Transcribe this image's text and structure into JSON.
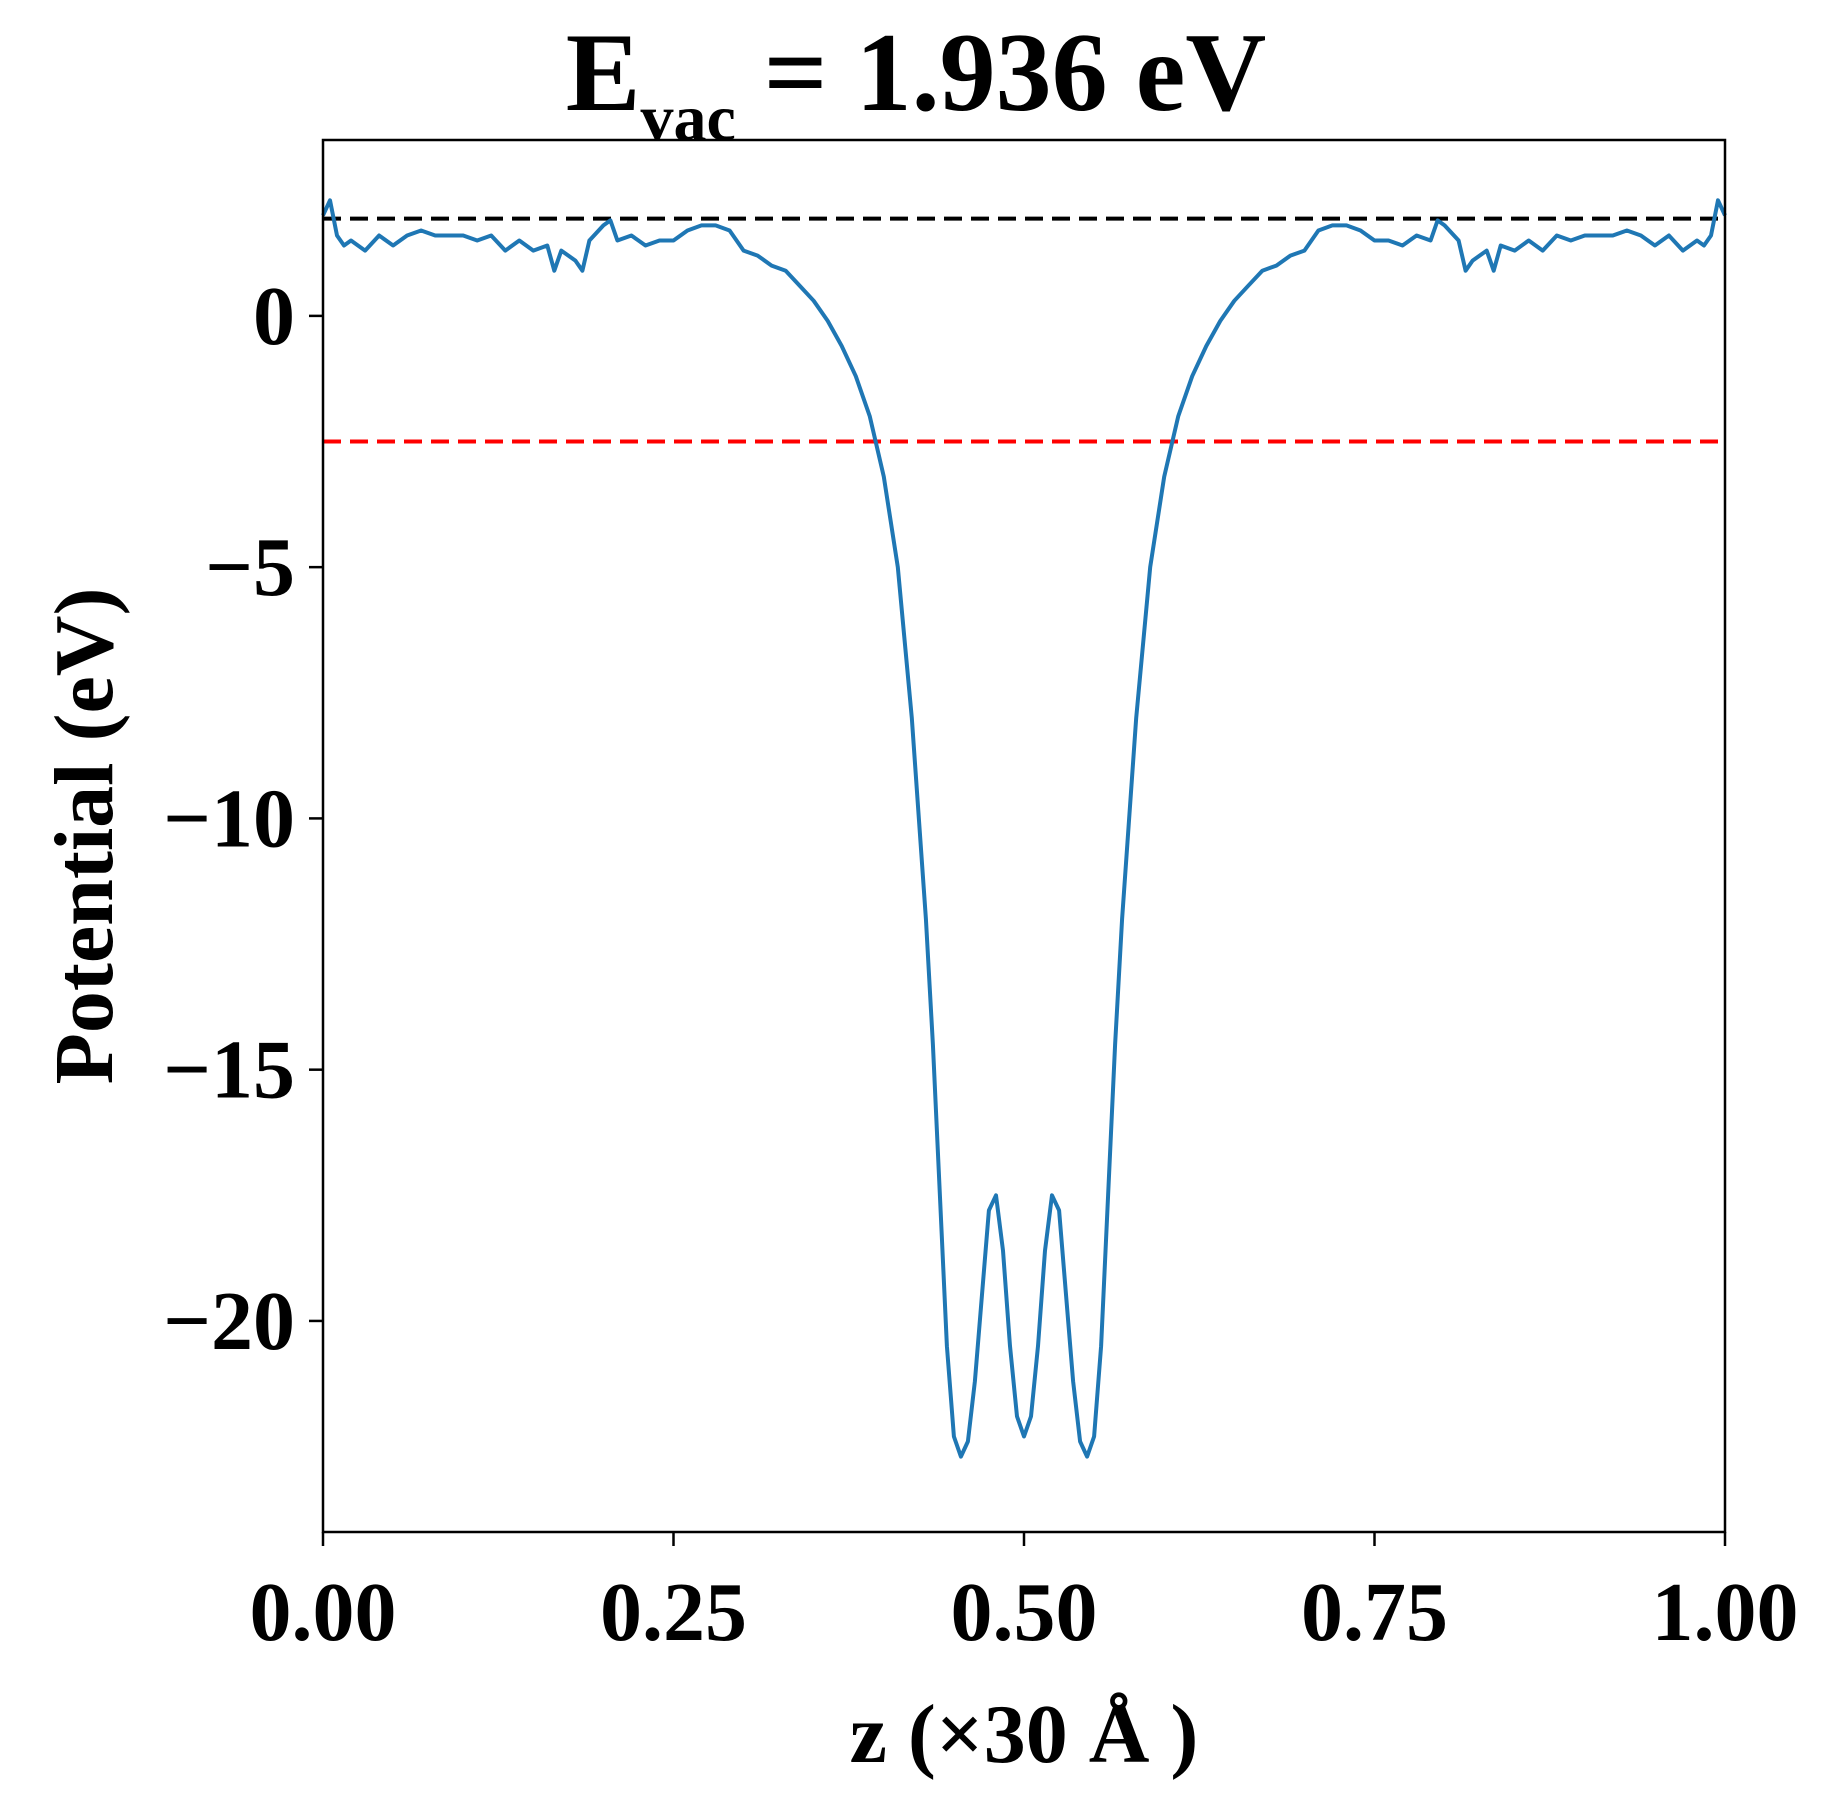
{
  "chart_data": {
    "type": "line",
    "title": {
      "base": "E",
      "subscript": "vac",
      "rest": " = 1.936 eV"
    },
    "xlabel": "z (×30 Å )",
    "ylabel": "Potential (eV)",
    "xlim": [
      0.0,
      1.0
    ],
    "ylim": [
      -24.2,
      3.5
    ],
    "xticks": [
      0.0,
      0.25,
      0.5,
      0.75,
      1.0
    ],
    "xtick_labels": [
      "0.00",
      "0.25",
      "0.50",
      "0.75",
      "1.00"
    ],
    "yticks": [
      0,
      -5,
      -10,
      -15,
      -20
    ],
    "ytick_labels": [
      "0",
      "−5",
      "−10",
      "−15",
      "−20"
    ],
    "grid": false,
    "legend": "none",
    "series": [
      {
        "color": "#1f77b4",
        "x": [
          0.0,
          0.005,
          0.01,
          0.015,
          0.02,
          0.03,
          0.04,
          0.05,
          0.06,
          0.07,
          0.08,
          0.09,
          0.1,
          0.11,
          0.12,
          0.13,
          0.14,
          0.15,
          0.16,
          0.165,
          0.17,
          0.18,
          0.185,
          0.19,
          0.2,
          0.205,
          0.21,
          0.22,
          0.23,
          0.24,
          0.25,
          0.26,
          0.27,
          0.28,
          0.29,
          0.3,
          0.31,
          0.32,
          0.33,
          0.34,
          0.35,
          0.36,
          0.37,
          0.38,
          0.39,
          0.4,
          0.41,
          0.42,
          0.43,
          0.435,
          0.44,
          0.445,
          0.45,
          0.455,
          0.46,
          0.465,
          0.47,
          0.475,
          0.48,
          0.485,
          0.49,
          0.495,
          0.5,
          0.505,
          0.51,
          0.515,
          0.52,
          0.525,
          0.53,
          0.535,
          0.54,
          0.545,
          0.55,
          0.555,
          0.56,
          0.565,
          0.57,
          0.58,
          0.59,
          0.6,
          0.61,
          0.62,
          0.63,
          0.64,
          0.65,
          0.66,
          0.67,
          0.68,
          0.69,
          0.7,
          0.71,
          0.72,
          0.73,
          0.74,
          0.75,
          0.76,
          0.77,
          0.78,
          0.79,
          0.795,
          0.8,
          0.81,
          0.815,
          0.82,
          0.83,
          0.835,
          0.84,
          0.85,
          0.86,
          0.87,
          0.88,
          0.89,
          0.9,
          0.91,
          0.92,
          0.93,
          0.94,
          0.95,
          0.96,
          0.97,
          0.98,
          0.985,
          0.99,
          0.995,
          1.0
        ],
        "y": [
          2.0,
          2.3,
          1.6,
          1.4,
          1.5,
          1.3,
          1.6,
          1.4,
          1.6,
          1.7,
          1.6,
          1.6,
          1.6,
          1.5,
          1.6,
          1.3,
          1.5,
          1.3,
          1.4,
          0.9,
          1.3,
          1.1,
          0.9,
          1.5,
          1.8,
          1.9,
          1.5,
          1.6,
          1.4,
          1.5,
          1.5,
          1.7,
          1.8,
          1.8,
          1.7,
          1.3,
          1.2,
          1.0,
          0.9,
          0.6,
          0.3,
          -0.1,
          -0.6,
          -1.2,
          -2.0,
          -3.2,
          -5.0,
          -8.0,
          -12.0,
          -14.5,
          -17.5,
          -20.5,
          -22.3,
          -22.7,
          -22.4,
          -21.2,
          -19.5,
          -17.8,
          -17.5,
          -18.6,
          -20.5,
          -21.9,
          -22.3,
          -21.9,
          -20.5,
          -18.6,
          -17.5,
          -17.8,
          -19.5,
          -21.2,
          -22.4,
          -22.7,
          -22.3,
          -20.5,
          -17.5,
          -14.5,
          -12.0,
          -8.0,
          -5.0,
          -3.2,
          -2.0,
          -1.2,
          -0.6,
          -0.1,
          0.3,
          0.6,
          0.9,
          1.0,
          1.2,
          1.3,
          1.7,
          1.8,
          1.8,
          1.7,
          1.5,
          1.5,
          1.4,
          1.6,
          1.5,
          1.9,
          1.8,
          1.5,
          0.9,
          1.1,
          1.3,
          0.9,
          1.4,
          1.3,
          1.5,
          1.3,
          1.6,
          1.5,
          1.6,
          1.6,
          1.6,
          1.7,
          1.6,
          1.4,
          1.6,
          1.3,
          1.5,
          1.4,
          1.6,
          2.3,
          2.0
        ]
      }
    ],
    "reference_lines": [
      {
        "y": 1.936,
        "color": "#000000",
        "style": "dashed"
      },
      {
        "y": -2.5,
        "color": "#ff0000",
        "style": "dashed"
      }
    ]
  }
}
